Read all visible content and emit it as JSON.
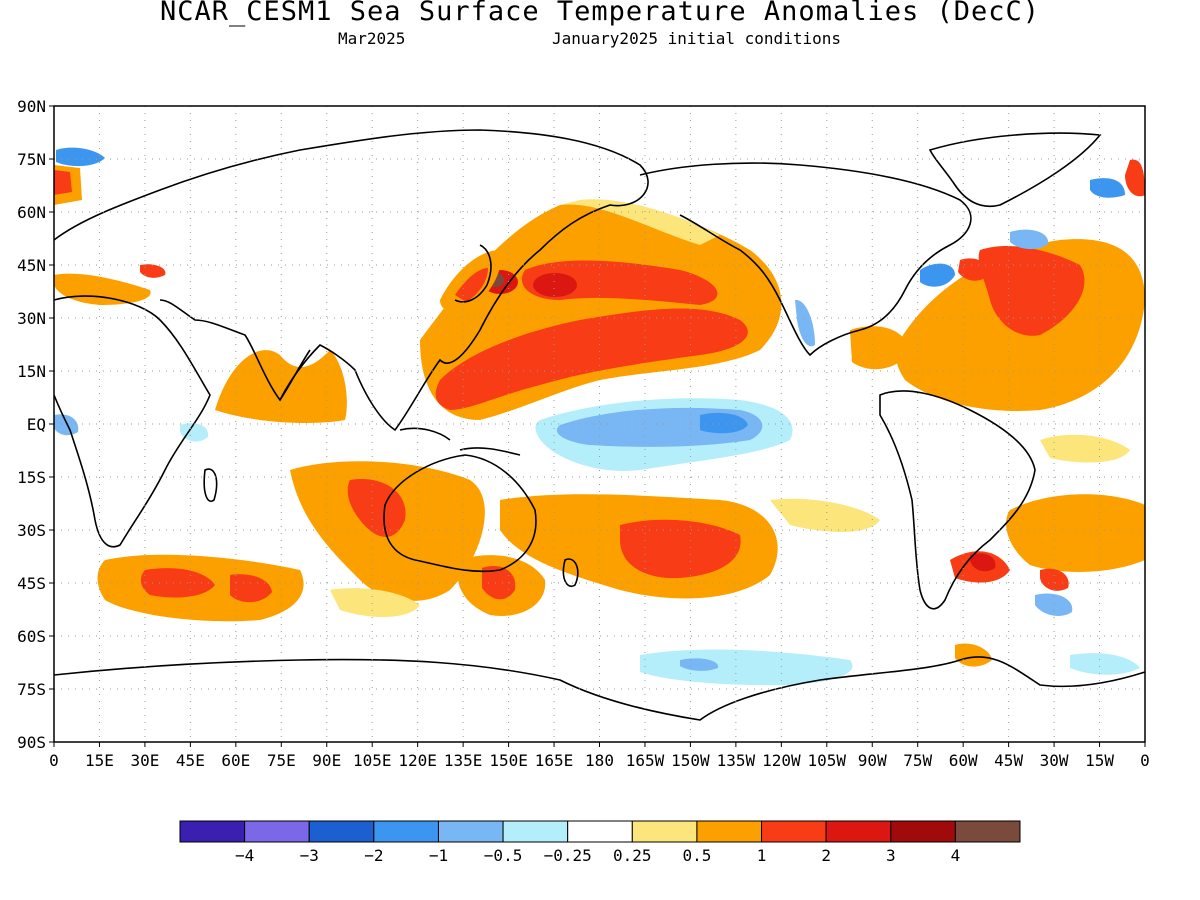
{
  "header": {
    "title": "NCAR_CESM1 Sea Surface Temperature Anomalies (DecC)",
    "valid_month": "Mar2025",
    "init_text": "January2025 initial conditions"
  },
  "map": {
    "lat_labels": [
      "90N",
      "75N",
      "60N",
      "45N",
      "30N",
      "15N",
      "EQ",
      "15S",
      "30S",
      "45S",
      "60S",
      "75S",
      "90S"
    ],
    "lon_labels": [
      "0",
      "15E",
      "30E",
      "45E",
      "60E",
      "75E",
      "90E",
      "105E",
      "120E",
      "135E",
      "150E",
      "165E",
      "180",
      "165W",
      "150W",
      "135W",
      "120W",
      "105W",
      "90W",
      "75W",
      "60W",
      "45W",
      "30W",
      "15W",
      "0"
    ],
    "lat_range": [
      -90,
      90
    ],
    "lon_range": [
      0,
      360
    ],
    "grid": true,
    "field": "sea surface temperature anomaly"
  },
  "legend": {
    "colors": [
      "#3a1fb0",
      "#7a68e8",
      "#1b5fd0",
      "#3c96f0",
      "#78b6f4",
      "#b4eefa",
      "#ffffff",
      "#fce57a",
      "#fca000",
      "#f73c16",
      "#dc1610",
      "#a00a0a",
      "#7a4a3c"
    ],
    "labels": [
      "−4",
      "−3",
      "−2",
      "−1",
      "−0.5",
      "−0.25",
      "0.25",
      "0.5",
      "1",
      "2",
      "3",
      "4"
    ]
  }
}
